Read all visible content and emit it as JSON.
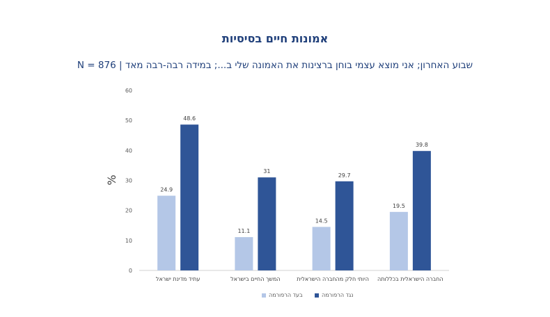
{
  "chart_data": {
    "type": "bar",
    "title": "אמונות חיים בסיסיות",
    "subtitle": "שבוע האחרון; אני מוצא עצמי בוחן ברצינות את האמונה שלי ב...; במידה רבה-רבה מאד | N = 876",
    "ylabel": "%",
    "ylim": [
      0,
      60
    ],
    "yticks": [
      0,
      10,
      20,
      30,
      40,
      50,
      60
    ],
    "categories": [
      "עתיד מדינת ישראל",
      "המשך החיים בישראל",
      "היותי חלק מהחברה הישראלית",
      "החברה הישראלית בכללותה"
    ],
    "series": [
      {
        "name": "בעד הרפורמה",
        "values": [
          24.9,
          11.1,
          14.5,
          19.5
        ],
        "labels": [
          "24.9",
          "11.1",
          "14.5",
          "19.5"
        ],
        "color": "#b4c7e7"
      },
      {
        "name": "נגד הרפורמה",
        "values": [
          48.6,
          31,
          29.7,
          39.8
        ],
        "labels": [
          "48.6",
          "31",
          "29.7",
          "39.8"
        ],
        "color": "#2f5597"
      }
    ],
    "grid": false,
    "legend_position": "bottom"
  }
}
